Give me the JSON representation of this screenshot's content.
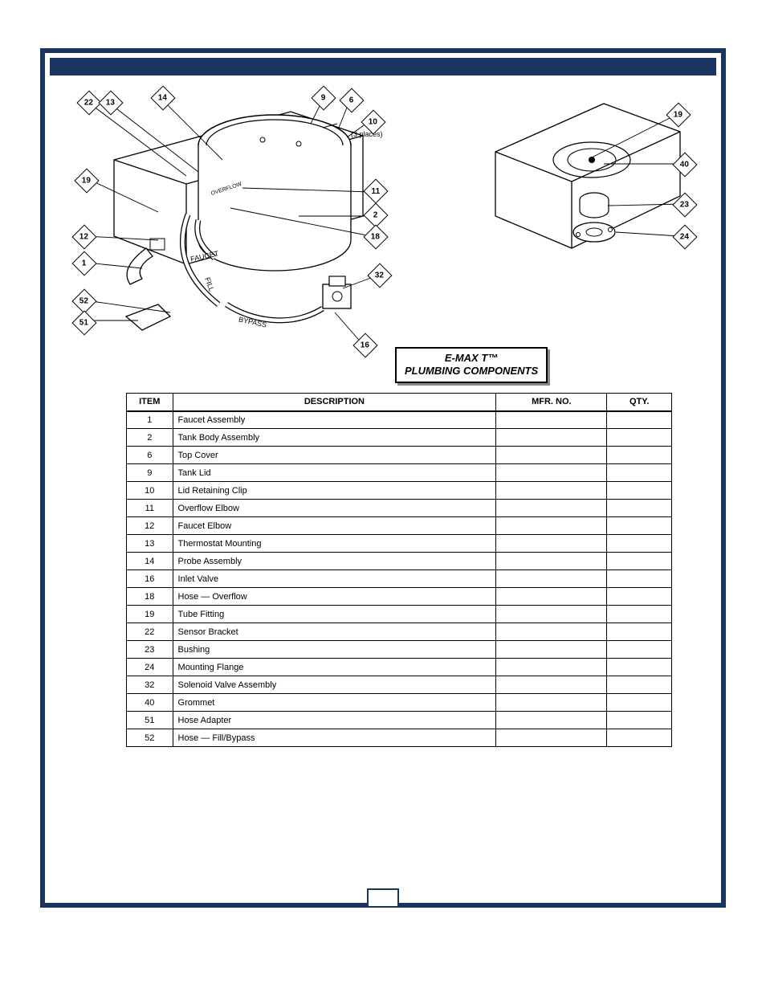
{
  "header": {
    "title": ""
  },
  "diagrams": {
    "left_callouts": {
      "c22": "22",
      "c13": "13",
      "c14": "14",
      "c9": "9",
      "c6": "6",
      "c10": "10",
      "places_note": "(3 places)",
      "c19": "19",
      "c11": "11",
      "c2": "2",
      "c12": "12",
      "c18": "18",
      "c1": "1",
      "c32": "32",
      "c52": "52",
      "c51": "51",
      "c16": "16",
      "hose_labels": {
        "faucet": "FAUCET",
        "fill": "FILL",
        "bypass": "BYPASS",
        "overflow": "OVERFLOW"
      }
    },
    "right_callouts": {
      "c19": "19",
      "c40": "40",
      "c23": "23",
      "c24": "24"
    }
  },
  "title_box": {
    "line1": "E-MAX T™",
    "line2": "PLUMBING COMPONENTS"
  },
  "table": {
    "headers": {
      "item": "ITEM",
      "desc": "DESCRIPTION",
      "mfr": "MFR. NO.",
      "qty": "QTY."
    },
    "rows": [
      {
        "item": "1",
        "desc": "Faucet Assembly",
        "mfr": "",
        "qty": ""
      },
      {
        "item": "2",
        "desc": "Tank Body Assembly",
        "mfr": "",
        "qty": ""
      },
      {
        "item": "6",
        "desc": "Top Cover",
        "mfr": "",
        "qty": ""
      },
      {
        "item": "9",
        "desc": "Tank Lid",
        "mfr": "",
        "qty": ""
      },
      {
        "item": "10",
        "desc": "Lid Retaining Clip",
        "mfr": "",
        "qty": ""
      },
      {
        "item": "11",
        "desc": "Overflow Elbow",
        "mfr": "",
        "qty": ""
      },
      {
        "item": "12",
        "desc": "Faucet Elbow",
        "mfr": "",
        "qty": ""
      },
      {
        "item": "13",
        "desc": "Thermostat Mounting",
        "mfr": "",
        "qty": ""
      },
      {
        "item": "14",
        "desc": "Probe Assembly",
        "mfr": "",
        "qty": ""
      },
      {
        "item": "16",
        "desc": "Inlet Valve",
        "mfr": "",
        "qty": ""
      },
      {
        "item": "18",
        "desc": "Hose — Overflow",
        "mfr": "",
        "qty": ""
      },
      {
        "item": "19",
        "desc": "Tube Fitting",
        "mfr": "",
        "qty": ""
      },
      {
        "item": "22",
        "desc": "Sensor Bracket",
        "mfr": "",
        "qty": ""
      },
      {
        "item": "23",
        "desc": "Bushing",
        "mfr": "",
        "qty": ""
      },
      {
        "item": "24",
        "desc": "Mounting Flange",
        "mfr": "",
        "qty": ""
      },
      {
        "item": "32",
        "desc": "Solenoid Valve Assembly",
        "mfr": "",
        "qty": ""
      },
      {
        "item": "40",
        "desc": "Grommet",
        "mfr": "",
        "qty": ""
      },
      {
        "item": "51",
        "desc": "Hose Adapter",
        "mfr": "",
        "qty": ""
      },
      {
        "item": "52",
        "desc": "Hose — Fill/Bypass",
        "mfr": "",
        "qty": ""
      }
    ]
  },
  "page_number": "",
  "colors": {
    "frame": "#1a3660",
    "text": "#000000",
    "bg": "#ffffff",
    "shadow": "#888888"
  }
}
